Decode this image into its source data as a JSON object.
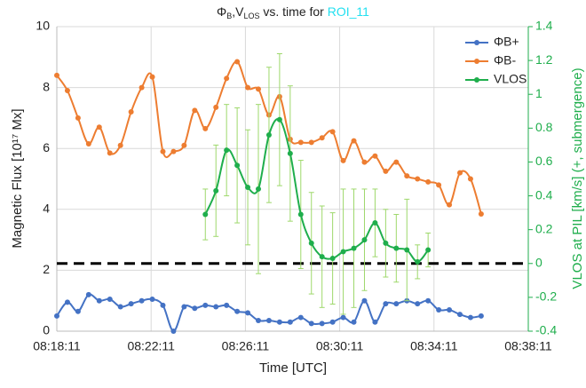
{
  "chart_data": {
    "type": "line",
    "title": [
      {
        "text": "Φ"
      },
      {
        "text": "B",
        "sub": true
      },
      {
        "text": ",V"
      },
      {
        "text": "LOS",
        "sub": true
      },
      {
        "text": " vs. time for "
      },
      {
        "text": "ROI_11",
        "color": "#22e0f0"
      }
    ],
    "x_label": "Time [UTC]",
    "y_label": "Magnetic Flux [10¹⁷ Mx]",
    "y2_label": "VLOS at PIL [km/s] (+, submergence)",
    "y2_color": "#1fae4c",
    "x": [
      "08:18:11",
      "08:18:38",
      "08:19:05",
      "08:19:32",
      "08:19:59",
      "08:20:26",
      "08:20:53",
      "08:21:20",
      "08:21:47",
      "08:22:14",
      "08:22:41",
      "08:23:08",
      "08:23:35",
      "08:24:02",
      "08:24:29",
      "08:24:56",
      "08:25:23",
      "08:25:50",
      "08:26:17",
      "08:26:44",
      "08:27:11",
      "08:27:38",
      "08:28:05",
      "08:28:32",
      "08:28:59",
      "08:29:26",
      "08:29:53",
      "08:30:20",
      "08:30:47",
      "08:31:14",
      "08:31:41",
      "08:32:08",
      "08:32:35",
      "08:33:02",
      "08:33:29",
      "08:33:56",
      "08:34:23",
      "08:34:50",
      "08:35:17",
      "08:35:44",
      "08:36:11"
    ],
    "xlim": [
      "08:18:11",
      "08:38:11"
    ],
    "xticks": [
      "08:18:11",
      "08:22:11",
      "08:26:11",
      "08:30:11",
      "08:34:11",
      "08:38:11"
    ],
    "ylim": [
      0,
      10
    ],
    "yticks": [
      0,
      2,
      4,
      6,
      8,
      10
    ],
    "y2lim": [
      -0.4,
      1.4
    ],
    "y2ticks": [
      -0.4,
      -0.2,
      0,
      0.2,
      0.4,
      0.6,
      0.8,
      1,
      1.2,
      1.4
    ],
    "grid": true,
    "legend": "top-right",
    "reference_line": {
      "axis": "y2",
      "value": 0,
      "color": "#000000"
    },
    "series": [
      {
        "name": "ΦB+",
        "color": "#4472c4",
        "values": [
          0.5,
          0.95,
          0.65,
          1.2,
          1.0,
          1.05,
          0.8,
          0.9,
          1.0,
          1.05,
          0.85,
          0.0,
          0.8,
          0.75,
          0.85,
          0.8,
          0.85,
          0.65,
          0.6,
          0.35,
          0.35,
          0.3,
          0.3,
          0.45,
          0.25,
          0.25,
          0.3,
          0.45,
          0.3,
          1.0,
          0.3,
          0.9,
          0.9,
          1.0,
          0.9,
          1.0,
          0.7,
          0.7,
          0.55,
          0.45,
          0.5
        ]
      },
      {
        "name": "ΦB-",
        "color": "#ed7d31",
        "values": [
          8.4,
          7.9,
          7.0,
          6.15,
          6.7,
          5.85,
          6.1,
          7.2,
          8.0,
          8.35,
          5.9,
          5.9,
          6.1,
          7.25,
          6.65,
          7.35,
          8.3,
          8.85,
          8.0,
          7.95,
          7.1,
          7.7,
          6.3,
          6.2,
          6.2,
          6.35,
          6.55,
          5.6,
          6.25,
          5.55,
          5.75,
          5.25,
          5.55,
          5.1,
          5.0,
          4.9,
          4.8,
          4.15,
          5.2,
          5.0,
          3.85
        ]
      },
      {
        "name": "VLOS",
        "color": "#1fae4c",
        "axis": "y2",
        "error_color": "#9ed86b",
        "values": [
          null,
          null,
          null,
          null,
          null,
          null,
          null,
          null,
          null,
          null,
          null,
          null,
          null,
          null,
          0.29,
          0.43,
          0.67,
          0.58,
          0.45,
          0.44,
          0.76,
          0.85,
          0.65,
          0.29,
          0.12,
          0.04,
          0.03,
          0.07,
          0.09,
          0.14,
          0.24,
          0.12,
          0.09,
          0.08,
          0.01,
          0.08,
          null,
          null,
          null,
          null,
          null
        ],
        "errors": [
          null,
          null,
          null,
          null,
          null,
          null,
          null,
          null,
          null,
          null,
          null,
          null,
          null,
          null,
          0.15,
          0.27,
          0.27,
          0.34,
          0.34,
          0.5,
          0.4,
          0.39,
          0.4,
          0.32,
          0.3,
          0.3,
          0.27,
          0.37,
          0.35,
          0.3,
          0.2,
          0.2,
          0.2,
          0.3,
          0.1,
          0.1,
          null,
          null,
          null,
          null,
          null
        ]
      }
    ]
  }
}
